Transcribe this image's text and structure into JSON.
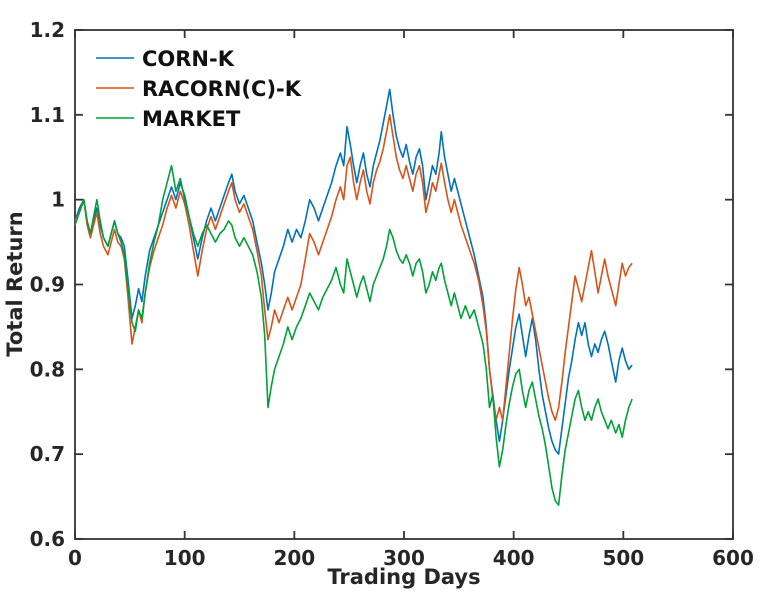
{
  "figure": {
    "background": "#ffffff",
    "axis_color": "#333333"
  },
  "chart_data": {
    "type": "line",
    "title": "",
    "xlabel": "Trading Days",
    "ylabel": "Total Return",
    "xlim": [
      0,
      600
    ],
    "ylim": [
      0.6,
      1.2
    ],
    "xticks": [
      0,
      100,
      200,
      300,
      400,
      500,
      600
    ],
    "xtick_labels": [
      "0",
      "100",
      "200",
      "300",
      "400",
      "500",
      "600"
    ],
    "yticks": [
      0.6,
      0.7,
      0.8,
      0.9,
      1.0,
      1.1,
      1.2
    ],
    "ytick_labels": [
      "0.6",
      "0.7",
      "0.8",
      "0.9",
      "1",
      "1.1",
      "1.2"
    ],
    "grid": false,
    "box": true,
    "legend_position": "inside-top-left-no-box",
    "x": [
      0,
      4,
      8,
      11,
      14,
      17,
      20,
      23,
      26,
      30,
      33,
      36,
      39,
      42,
      45,
      48,
      52,
      55,
      58,
      61,
      64,
      68,
      72,
      76,
      80,
      84,
      88,
      92,
      96,
      100,
      104,
      108,
      112,
      116,
      120,
      124,
      128,
      132,
      136,
      140,
      143,
      146,
      150,
      154,
      158,
      162,
      166,
      170,
      173,
      176,
      179,
      182,
      186,
      190,
      194,
      198,
      202,
      206,
      210,
      214,
      218,
      222,
      226,
      230,
      234,
      238,
      242,
      245,
      248,
      251,
      254,
      257,
      260,
      263,
      266,
      269,
      272,
      275,
      278,
      281,
      284,
      287,
      290,
      293,
      296,
      299,
      302,
      305,
      308,
      311,
      314,
      317,
      320,
      323,
      326,
      329,
      332,
      334,
      337,
      340,
      343,
      346,
      349,
      352,
      356,
      360,
      364,
      368,
      372,
      375,
      378,
      381,
      384,
      387,
      390,
      393,
      396,
      399,
      402,
      405,
      408,
      411,
      414,
      417,
      420,
      423,
      426,
      429,
      432,
      435,
      438,
      441,
      444,
      447,
      450,
      453,
      456,
      459,
      462,
      465,
      468,
      471,
      474,
      477,
      480,
      483,
      486,
      489,
      493,
      496,
      499,
      502,
      505,
      508
    ],
    "series": [
      {
        "name": "CORN-K",
        "color": "#0072BD",
        "y": [
          0.975,
          0.99,
          1.0,
          0.975,
          0.96,
          0.975,
          0.99,
          0.97,
          0.955,
          0.945,
          0.96,
          0.975,
          0.96,
          0.955,
          0.945,
          0.91,
          0.86,
          0.875,
          0.895,
          0.88,
          0.91,
          0.94,
          0.955,
          0.97,
          0.985,
          1.0,
          1.015,
          1.0,
          1.02,
          1.005,
          0.98,
          0.955,
          0.93,
          0.955,
          0.975,
          0.99,
          0.975,
          0.99,
          1.005,
          1.02,
          1.03,
          1.01,
          0.995,
          1.005,
          0.99,
          0.975,
          0.95,
          0.925,
          0.9,
          0.87,
          0.89,
          0.915,
          0.93,
          0.945,
          0.965,
          0.95,
          0.965,
          0.955,
          0.975,
          1.0,
          0.99,
          0.975,
          0.99,
          1.005,
          1.02,
          1.04,
          1.055,
          1.04,
          1.086,
          1.065,
          1.04,
          1.02,
          1.04,
          1.055,
          1.03,
          1.015,
          1.04,
          1.055,
          1.07,
          1.09,
          1.11,
          1.13,
          1.1,
          1.075,
          1.06,
          1.05,
          1.065,
          1.045,
          1.03,
          1.05,
          1.06,
          1.04,
          1.0,
          1.02,
          1.04,
          1.03,
          1.055,
          1.08,
          1.05,
          1.03,
          1.01,
          1.025,
          1.01,
          0.995,
          0.975,
          0.955,
          0.935,
          0.91,
          0.885,
          0.85,
          0.8,
          0.77,
          0.74,
          0.715,
          0.74,
          0.77,
          0.8,
          0.825,
          0.85,
          0.865,
          0.84,
          0.815,
          0.84,
          0.86,
          0.835,
          0.8,
          0.77,
          0.75,
          0.73,
          0.715,
          0.705,
          0.7,
          0.73,
          0.76,
          0.79,
          0.81,
          0.835,
          0.855,
          0.84,
          0.855,
          0.83,
          0.815,
          0.83,
          0.82,
          0.835,
          0.845,
          0.83,
          0.81,
          0.785,
          0.81,
          0.825,
          0.81,
          0.8,
          0.805
        ]
      },
      {
        "name": "RACORN(C)-K",
        "color": "#D95319",
        "y": [
          0.975,
          0.985,
          1.0,
          0.97,
          0.955,
          0.97,
          0.985,
          0.96,
          0.945,
          0.935,
          0.95,
          0.965,
          0.95,
          0.945,
          0.93,
          0.89,
          0.83,
          0.85,
          0.87,
          0.855,
          0.89,
          0.92,
          0.94,
          0.955,
          0.97,
          0.99,
          1.005,
          0.99,
          1.01,
          0.995,
          0.97,
          0.94,
          0.91,
          0.94,
          0.965,
          0.98,
          0.965,
          0.98,
          0.995,
          1.01,
          1.02,
          1.0,
          0.985,
          0.995,
          0.98,
          0.965,
          0.94,
          0.91,
          0.87,
          0.835,
          0.85,
          0.87,
          0.855,
          0.87,
          0.885,
          0.87,
          0.885,
          0.9,
          0.93,
          0.96,
          0.95,
          0.935,
          0.95,
          0.965,
          0.98,
          1.0,
          1.015,
          1.0,
          1.04,
          1.05,
          1.02,
          1.0,
          1.02,
          1.035,
          1.01,
          0.995,
          1.02,
          1.035,
          1.045,
          1.06,
          1.08,
          1.1,
          1.075,
          1.05,
          1.035,
          1.025,
          1.04,
          1.025,
          1.01,
          1.03,
          1.04,
          1.02,
          0.985,
          1.0,
          1.02,
          1.01,
          1.03,
          1.043,
          1.02,
          1.0,
          0.985,
          1.0,
          0.985,
          0.97,
          0.955,
          0.94,
          0.925,
          0.905,
          0.875,
          0.845,
          0.8,
          0.765,
          0.74,
          0.755,
          0.74,
          0.78,
          0.82,
          0.86,
          0.895,
          0.92,
          0.9,
          0.875,
          0.885,
          0.865,
          0.845,
          0.825,
          0.805,
          0.785,
          0.765,
          0.75,
          0.74,
          0.755,
          0.785,
          0.82,
          0.85,
          0.88,
          0.91,
          0.895,
          0.88,
          0.9,
          0.92,
          0.94,
          0.915,
          0.89,
          0.91,
          0.93,
          0.91,
          0.895,
          0.875,
          0.9,
          0.925,
          0.91,
          0.92,
          0.925
        ]
      },
      {
        "name": "MARKET",
        "color": "#00A13A",
        "y": [
          0.97,
          0.985,
          1.0,
          0.975,
          0.96,
          0.98,
          1.0,
          0.975,
          0.955,
          0.945,
          0.96,
          0.975,
          0.96,
          0.95,
          0.935,
          0.9,
          0.855,
          0.845,
          0.87,
          0.86,
          0.89,
          0.925,
          0.95,
          0.97,
          1.0,
          1.02,
          1.04,
          1.01,
          1.025,
          1.0,
          0.98,
          0.96,
          0.945,
          0.96,
          0.97,
          0.96,
          0.95,
          0.96,
          0.965,
          0.975,
          0.97,
          0.955,
          0.945,
          0.955,
          0.945,
          0.935,
          0.915,
          0.885,
          0.84,
          0.755,
          0.78,
          0.8,
          0.815,
          0.83,
          0.85,
          0.835,
          0.85,
          0.86,
          0.875,
          0.89,
          0.88,
          0.87,
          0.885,
          0.895,
          0.905,
          0.92,
          0.9,
          0.89,
          0.93,
          0.915,
          0.9,
          0.885,
          0.9,
          0.91,
          0.895,
          0.88,
          0.9,
          0.91,
          0.92,
          0.93,
          0.945,
          0.965,
          0.955,
          0.94,
          0.93,
          0.925,
          0.935,
          0.925,
          0.91,
          0.925,
          0.93,
          0.915,
          0.89,
          0.9,
          0.915,
          0.905,
          0.92,
          0.925,
          0.905,
          0.89,
          0.875,
          0.89,
          0.875,
          0.86,
          0.875,
          0.86,
          0.87,
          0.85,
          0.83,
          0.8,
          0.755,
          0.77,
          0.72,
          0.685,
          0.705,
          0.735,
          0.76,
          0.78,
          0.795,
          0.8,
          0.775,
          0.755,
          0.775,
          0.785,
          0.765,
          0.745,
          0.73,
          0.71,
          0.685,
          0.66,
          0.645,
          0.64,
          0.675,
          0.705,
          0.725,
          0.745,
          0.765,
          0.775,
          0.755,
          0.74,
          0.75,
          0.74,
          0.755,
          0.765,
          0.75,
          0.74,
          0.73,
          0.74,
          0.725,
          0.735,
          0.72,
          0.74,
          0.755,
          0.765
        ]
      }
    ],
    "legend": [
      "CORN-K",
      "RACORN(C)-K",
      "MARKET"
    ]
  }
}
